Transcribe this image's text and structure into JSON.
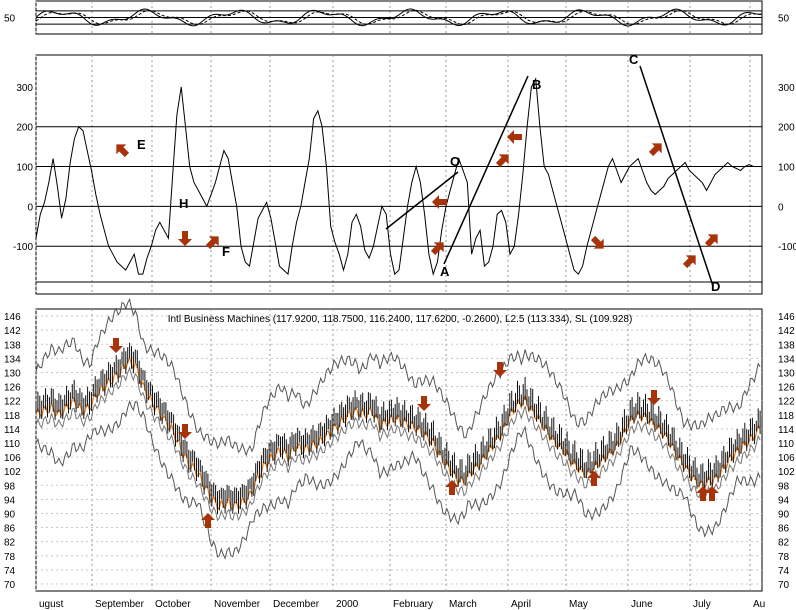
{
  "chart_data": [
    {
      "type": "line",
      "panel": "oscillator",
      "title": "",
      "ytick_labels": [
        "50"
      ],
      "ylim": [
        0,
        100
      ],
      "reference_lines": [
        30,
        50,
        70
      ],
      "grid": true
    },
    {
      "type": "line",
      "panel": "cci",
      "title": "",
      "ytick_labels": [
        "300",
        "200",
        "100",
        "0",
        "-100"
      ],
      "ylim": [
        -220,
        380
      ],
      "reference_lines": [
        -190,
        -100,
        0,
        100,
        200
      ],
      "grid": true,
      "series": [
        {
          "x": [
            0,
            3,
            6,
            9,
            12,
            15,
            18,
            21,
            24,
            27,
            30,
            33,
            36,
            39,
            42,
            45,
            48,
            51,
            54,
            57,
            60,
            63,
            66,
            69,
            72,
            75,
            78,
            81,
            84,
            87,
            90,
            93,
            96,
            99,
            102,
            105,
            108,
            111,
            114,
            117,
            120,
            123,
            126,
            129,
            132,
            135,
            138,
            141,
            144,
            147,
            150,
            153,
            156,
            159,
            162,
            165,
            168,
            171,
            174,
            177,
            180,
            183,
            186,
            189,
            192,
            195,
            198,
            201,
            204,
            207,
            210,
            213,
            216,
            219,
            222,
            225,
            228,
            231,
            234,
            237,
            240,
            243,
            246,
            249,
            252,
            255
          ],
          "values": [
            -80,
            -20,
            10,
            60,
            120,
            50,
            -30,
            20,
            110,
            170,
            200,
            190,
            140,
            90,
            30,
            -20,
            -60,
            -100,
            -120,
            -140,
            -150,
            -160,
            -140,
            -120,
            -170,
            -170,
            -130,
            -100,
            -60,
            -40,
            -60,
            -80,
            80,
            230,
            300,
            200,
            100,
            60,
            40,
            20,
            0,
            30,
            60,
            100,
            140,
            120,
            60,
            0,
            -100,
            -140,
            -150,
            -90,
            -30,
            -10,
            10,
            -30,
            -90,
            -150,
            -160,
            -170,
            -100,
            -40,
            0,
            60,
            120,
            220,
            240,
            200,
            100,
            -50,
            -90,
            -120,
            -160,
            -120,
            -40,
            -20,
            -50,
            -110,
            -130,
            -100,
            -50,
            0,
            -20,
            -120,
            -170,
            -160
          ],
          "xlim": [
            0,
            255
          ]
        },
        {
          "x": [
            255,
            258,
            261,
            264,
            267,
            270,
            273,
            276,
            279,
            282,
            285,
            288,
            291,
            294,
            297,
            300,
            303,
            306,
            309,
            312,
            315,
            318,
            321,
            324,
            327,
            330,
            333,
            336,
            339,
            342,
            345,
            348,
            351,
            354,
            357,
            360,
            363,
            366,
            369,
            372,
            375,
            378,
            381,
            384,
            387,
            390,
            393,
            396,
            399,
            402,
            405,
            408,
            411,
            414,
            417,
            420,
            423,
            426,
            429,
            432,
            435,
            438,
            441,
            444,
            447,
            450,
            453,
            456,
            459,
            462,
            465,
            468,
            471,
            474,
            477,
            480,
            483,
            486,
            489,
            492,
            495,
            498,
            501,
            504,
            507,
            510
          ],
          "values": [
            -160,
            -80,
            0,
            60,
            100,
            60,
            -20,
            -120,
            -170,
            -140,
            -60,
            0,
            40,
            80,
            120,
            90,
            60,
            -120,
            -80,
            -60,
            -150,
            -140,
            -100,
            -20,
            -10,
            -40,
            -120,
            -100,
            -20,
            80,
            200,
            300,
            320,
            200,
            100,
            80,
            40,
            0,
            -40,
            -80,
            -120,
            -160,
            -170,
            -150,
            -100,
            -60,
            -20,
            20,
            60,
            100,
            120,
            90,
            60,
            80,
            100,
            110,
            120,
            90,
            60,
            40,
            30,
            40,
            50,
            70,
            80,
            90,
            100,
            110,
            90,
            80,
            70,
            60,
            40,
            60,
            80,
            90,
            100,
            110,
            100,
            95,
            90,
            100,
            105,
            100,
            100,
            100
          ],
          "xlim": [
            255,
            510
          ]
        }
      ]
    },
    {
      "type": "line",
      "panel": "price",
      "title": "Intl Business Machines (117.9200, 118.7500, 116.2400, 117.6200, -0.2600), L2.5 (113.334), SL (109.928)",
      "ytick_labels": [
        "146",
        "142",
        "138",
        "134",
        "130",
        "126",
        "122",
        "118",
        "114",
        "110",
        "106",
        "102",
        "98",
        "94",
        "90",
        "86",
        "82",
        "78",
        "74",
        "70"
      ],
      "ylim": [
        68,
        148
      ],
      "grid": true,
      "months": [
        "ugust",
        "September",
        "October",
        "November",
        "December",
        "2000",
        "February",
        "March",
        "April",
        "May",
        "June",
        "July",
        "Au"
      ],
      "series": [
        {
          "name": "",
          "x": [
            0,
            8,
            16,
            24,
            32,
            40,
            48,
            56,
            64,
            72,
            80,
            88,
            96,
            104,
            112,
            120,
            128,
            136,
            144,
            152,
            160,
            168,
            176,
            184,
            192,
            200,
            208,
            216,
            224,
            232,
            240,
            248,
            256,
            264,
            272,
            280,
            288,
            296,
            304,
            312,
            320,
            328,
            336,
            344,
            352,
            360,
            368,
            376,
            384,
            392,
            400,
            408,
            416,
            424,
            432,
            440,
            448,
            456,
            464,
            472,
            480,
            488,
            496,
            504,
            512,
            520,
            528,
            536,
            544,
            552,
            560,
            568,
            576,
            584,
            592,
            600,
            608,
            616,
            624,
            632,
            640,
            648,
            656,
            664,
            672,
            680,
            688,
            696,
            704,
            712,
            720,
            728,
            736,
            744,
            752,
            760
          ],
          "values": [
            120,
            121,
            122,
            120,
            122,
            124,
            121,
            122,
            126,
            128,
            130,
            132,
            135,
            134,
            128,
            124,
            121,
            118,
            115,
            110,
            106,
            104,
            100,
            96,
            94,
            95,
            94,
            95,
            97,
            102,
            106,
            108,
            110,
            108,
            111,
            110,
            111,
            112,
            114,
            116,
            118,
            120,
            121,
            120,
            121,
            117,
            118,
            119,
            118,
            117,
            116,
            114,
            112,
            108,
            105,
            102,
            101,
            104,
            106,
            109,
            112,
            115,
            120,
            123,
            124,
            121,
            118,
            115,
            112,
            110,
            107,
            105,
            103,
            105,
            107,
            109,
            111,
            115,
            119,
            120,
            119,
            117,
            115,
            112,
            108,
            105,
            102,
            100,
            101,
            102,
            105,
            108,
            110,
            112,
            114,
            117
          ],
          "xlim": [
            0,
            760
          ]
        }
      ]
    }
  ]
}
